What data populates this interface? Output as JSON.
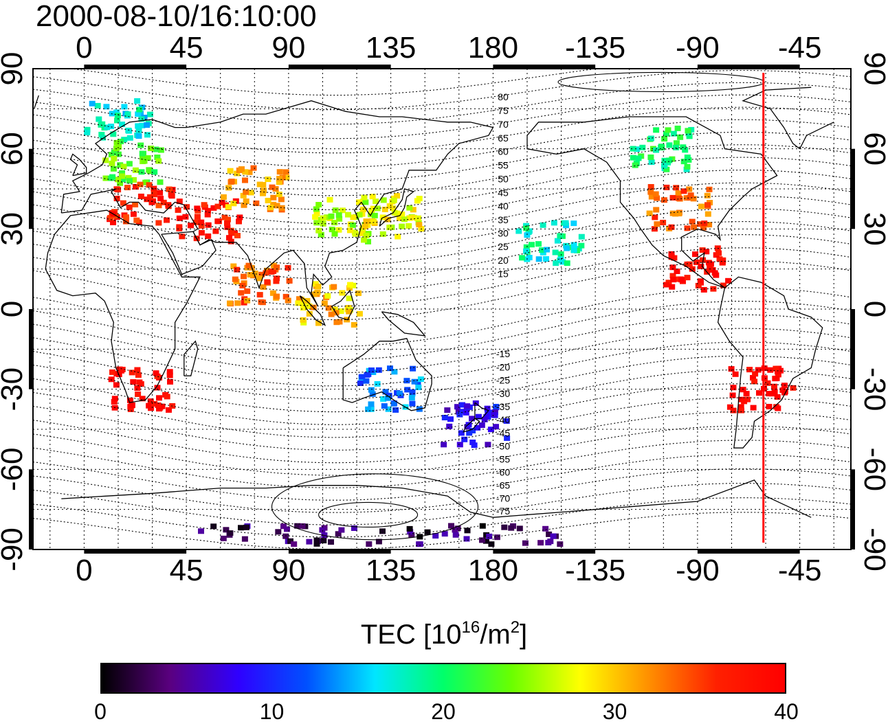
{
  "timestamp": "2000-08-10/16:10:00",
  "map": {
    "projection": "cylindrical-equidistant",
    "lon_center": 180,
    "lon_range": [
      -22.5,
      337.5
    ],
    "lat_range": [
      -90,
      90
    ],
    "lon_tick_labels": [
      "0",
      "45",
      "90",
      "135",
      "180",
      "-135",
      "-90",
      "-45"
    ],
    "lon_tick_values": [
      0,
      45,
      90,
      135,
      180,
      225,
      270,
      315
    ],
    "lat_tick_labels": [
      "-90",
      "-60",
      "-30",
      "0",
      "30",
      "60",
      "90"
    ],
    "lat_tick_values": [
      -90,
      -60,
      -30,
      0,
      30,
      60,
      90
    ],
    "grid": "dotted-15deg",
    "coastlines": true,
    "marker_line_lon": -61,
    "marker_line_color": "#ff0000"
  },
  "contour_labels": {
    "north": [
      "80",
      "75",
      "70",
      "65",
      "60",
      "55",
      "50",
      "45",
      "40",
      "35",
      "30",
      "25",
      "20",
      "15"
    ],
    "south": [
      "-15",
      "-20",
      "-25",
      "-30",
      "-35",
      "-40",
      "-45",
      "-50",
      "-55",
      "-60",
      "-65",
      "-70",
      "-75"
    ]
  },
  "colorbar": {
    "title_prefix": "TEC  [10",
    "title_exp1": "16",
    "title_mid": "/m",
    "title_exp2": "2",
    "title_suffix": "]",
    "tick_labels": [
      "0",
      "10",
      "20",
      "30",
      "40"
    ],
    "min": 0,
    "max": 40,
    "colors": [
      "#000000",
      "#5a0080",
      "#2f00ff",
      "#0050ff",
      "#00e6ff",
      "#00ff6a",
      "#6aff00",
      "#ffff00",
      "#ff9000",
      "#ff2000",
      "#ff0000"
    ]
  },
  "tec_clusters": [
    {
      "region": "europe-north",
      "lon": 15,
      "lat": 70,
      "tec": 17
    },
    {
      "region": "europe-mid",
      "lon": 20,
      "lat": 55,
      "tec": 23
    },
    {
      "region": "europe-south",
      "lon": 25,
      "lat": 40,
      "tec": 37
    },
    {
      "region": "middle-east",
      "lon": 55,
      "lat": 33,
      "tec": 38
    },
    {
      "region": "central-asia",
      "lon": 75,
      "lat": 45,
      "tec": 31
    },
    {
      "region": "india",
      "lon": 78,
      "lat": 10,
      "tec": 34
    },
    {
      "region": "china",
      "lon": 115,
      "lat": 33,
      "tec": 26
    },
    {
      "region": "japan",
      "lon": 135,
      "lat": 35,
      "tec": 28
    },
    {
      "region": "se-asia",
      "lon": 108,
      "lat": 2,
      "tec": 30
    },
    {
      "region": "australia",
      "lon": 135,
      "lat": -30,
      "tec": 13
    },
    {
      "region": "new-zealand",
      "lon": 172,
      "lat": -43,
      "tec": 8
    },
    {
      "region": "pacific",
      "lon": 205,
      "lat": 25,
      "tec": 18
    },
    {
      "region": "north-america",
      "lon": 262,
      "lat": 38,
      "tec": 34
    },
    {
      "region": "canada",
      "lon": 255,
      "lat": 60,
      "tec": 20
    },
    {
      "region": "central-america",
      "lon": 270,
      "lat": 15,
      "tec": 39
    },
    {
      "region": "south-america",
      "lon": 298,
      "lat": -30,
      "tec": 40
    },
    {
      "region": "africa-south",
      "lon": 25,
      "lat": -30,
      "tec": 39
    },
    {
      "region": "antarctica",
      "lon": 130,
      "lat": -85,
      "tec": 3
    }
  ]
}
